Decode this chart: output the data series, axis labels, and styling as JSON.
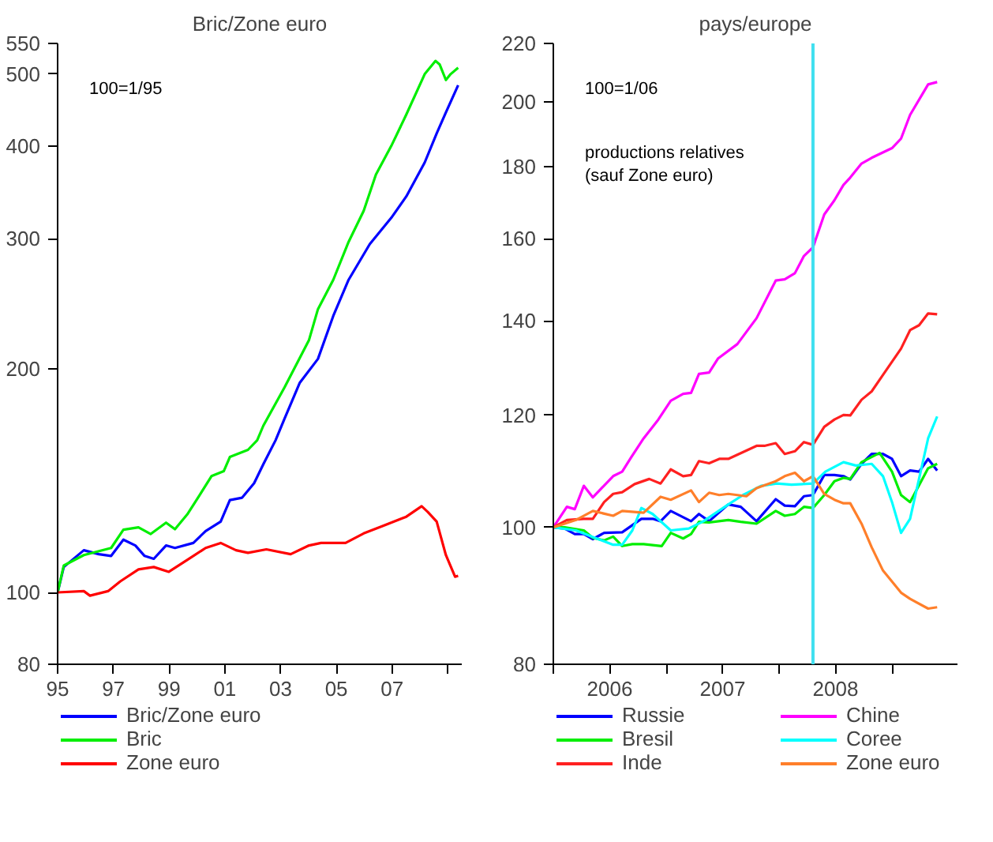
{
  "chart_data": [
    {
      "type": "line",
      "title": "Bric/Zone euro",
      "log": true,
      "grid": false,
      "legend": "bottom",
      "annotations": [
        "100=1/95"
      ],
      "ylim": [
        80,
        550
      ],
      "yticks": [
        80,
        100,
        200,
        300,
        400,
        500,
        550
      ],
      "xlim": [
        1995,
        2009.5
      ],
      "xticks": [
        {
          "value": 1995,
          "label": "95"
        },
        {
          "value": 1997,
          "label": "97"
        },
        {
          "value": 1999,
          "label": "99"
        },
        {
          "value": 2001,
          "label": "01"
        },
        {
          "value": 2003,
          "label": "03"
        },
        {
          "value": 2005,
          "label": "05"
        },
        {
          "value": 2007,
          "label": "07"
        },
        {
          "value": 2009,
          "label": null
        }
      ],
      "series": [
        {
          "name": "Bric/Zone euro",
          "color": "#0000ff",
          "x": [
            1995,
            1995.22,
            1995.94,
            1996.48,
            1996.92,
            1997.36,
            1997.79,
            1998.12,
            1998.45,
            1998.89,
            1999.21,
            1999.87,
            2000.31,
            2000.85,
            2001.18,
            2001.62,
            2002.05,
            2002.38,
            2002.82,
            2003.14,
            2003.69,
            2004.34,
            2004.89,
            2005.44,
            2006.2,
            2006.97,
            2007.51,
            2008.17,
            2008.6,
            2008.93,
            2009.37
          ],
          "values": [
            100,
            108.2,
            114,
            112.6,
            112,
            117.8,
            115.7,
            112,
            111,
            115.7,
            114.8,
            116.6,
            121,
            124.6,
            133.2,
            134.2,
            140.4,
            148.9,
            160.4,
            171.5,
            191.8,
            206.5,
            236,
            264,
            295,
            320,
            342,
            380,
            416,
            444,
            483
          ]
        },
        {
          "name": "Bric",
          "color": "#00ee00",
          "x": [
            1995,
            1995.22,
            1995.94,
            1996.92,
            1997.36,
            1997.9,
            1998.34,
            1998.89,
            1999.21,
            1999.65,
            2000.09,
            2000.52,
            2000.96,
            2001.18,
            2001.83,
            2002.16,
            2002.38,
            2003.14,
            2004.02,
            2004.34,
            2004.89,
            2005.44,
            2005.98,
            2006.42,
            2006.97,
            2007.51,
            2008.17,
            2008.56,
            2008.71,
            2008.93,
            2009.1,
            2009.37
          ],
          "values": [
            100,
            108.7,
            112.3,
            114.8,
            121.5,
            122.4,
            119.9,
            124.2,
            121.7,
            127.4,
            135.2,
            143.5,
            145.7,
            152.3,
            155.7,
            160.4,
            167.8,
            189,
            219,
            241,
            264,
            297,
            327,
            366,
            400,
            441,
            500,
            521,
            515,
            491,
            500,
            510
          ]
        },
        {
          "name": "Zone euro",
          "color": "#ff0000",
          "x": [
            1995,
            1995.94,
            1996.16,
            1996.81,
            1997.25,
            1997.9,
            1998.45,
            1998.99,
            1999.65,
            2000.31,
            2000.85,
            2001.4,
            2001.83,
            2002.49,
            2003.36,
            2004.02,
            2004.45,
            2005.33,
            2005.98,
            2006.64,
            2007.51,
            2008.06,
            2008.28,
            2008.6,
            2008.93,
            2009.26,
            2009.37
          ],
          "values": [
            100,
            100.4,
            99,
            100.4,
            103.5,
            107.4,
            108.2,
            106.6,
            110.6,
            114.8,
            116.6,
            114,
            113.1,
            114.3,
            112.6,
            115.7,
            116.6,
            116.6,
            120.1,
            122.8,
            126.5,
            130.7,
            128.4,
            124.6,
            112.3,
            105,
            105.3
          ]
        }
      ]
    },
    {
      "type": "line",
      "title": "pays/europe",
      "log": true,
      "grid": false,
      "legend": "bottom",
      "annotations": [
        "100=1/06",
        "productions relatives\n(sauf Zone euro)"
      ],
      "ylim": [
        80,
        220
      ],
      "yticks": [
        80,
        100,
        120,
        140,
        160,
        180,
        200,
        220
      ],
      "xlim": [
        2006,
        2009.58
      ],
      "xticks": [
        {
          "value": 2006,
          "label": null
        },
        {
          "value": 2007,
          "label": null
        },
        {
          "value": 2008,
          "label": null
        },
        {
          "value": 2009,
          "label": null
        },
        {
          "value": 2006.5,
          "label": "2006"
        },
        {
          "value": 2007.5,
          "label": "2007"
        },
        {
          "value": 2008.5,
          "label": "2008"
        }
      ],
      "ref_lines": [
        {
          "axis": "x",
          "value": 2008.3,
          "label": null,
          "color": "#40e0f0"
        }
      ],
      "series": [
        {
          "name": "Russie",
          "color": "#0000ff",
          "x": [
            2006,
            2006.1,
            2006.19,
            2006.27,
            2006.35,
            2006.45,
            2006.61,
            2006.78,
            2006.88,
            2006.95,
            2007.04,
            2007.22,
            2007.29,
            2007.38,
            2007.55,
            2007.66,
            2007.8,
            2007.97,
            2008.05,
            2008.14,
            2008.22,
            2008.3,
            2008.4,
            2008.49,
            2008.57,
            2008.63,
            2008.73,
            2008.82,
            2008.92,
            2009.0,
            2009.08,
            2009.16,
            2009.24,
            2009.32,
            2009.4
          ],
          "values": [
            100,
            99.8,
            98.9,
            98.9,
            98.1,
            99.1,
            99.2,
            101.4,
            101.4,
            101,
            102.7,
            101,
            102.2,
            101,
            103.8,
            103.4,
            101,
            104.7,
            103.6,
            103.5,
            105.2,
            105.4,
            108.9,
            108.9,
            108.7,
            108.1,
            110.9,
            112.7,
            112.7,
            111.8,
            108.7,
            109.7,
            109.5,
            111.8,
            109.7
          ]
        },
        {
          "name": "Chine",
          "color": "#ff00ff",
          "x": [
            2006,
            2006.12,
            2006.19,
            2006.27,
            2006.35,
            2006.53,
            2006.61,
            2006.69,
            2006.8,
            2006.93,
            2007.04,
            2007.15,
            2007.22,
            2007.29,
            2007.38,
            2007.46,
            2007.63,
            2007.8,
            2007.97,
            2008.05,
            2008.14,
            2008.22,
            2008.3,
            2008.4,
            2008.49,
            2008.57,
            2008.63,
            2008.73,
            2008.82,
            2009.0,
            2009.08,
            2009.16,
            2009.32,
            2009.4
          ],
          "values": [
            100,
            103.4,
            103,
            107,
            105,
            108.7,
            109.5,
            112.1,
            115.6,
            119.2,
            122.9,
            124.3,
            124.5,
            128.4,
            128.7,
            131.7,
            134.8,
            140.6,
            149.5,
            149.8,
            151.3,
            155.6,
            157.8,
            166.5,
            170.4,
            174.7,
            176.8,
            180.9,
            182.6,
            185.5,
            188.4,
            195.8,
            205.8,
            206.6
          ]
        },
        {
          "name": "Bresil",
          "color": "#00ee00",
          "x": [
            2006,
            2006.1,
            2006.27,
            2006.35,
            2006.45,
            2006.53,
            2006.61,
            2006.7,
            2006.8,
            2006.96,
            2007.04,
            2007.15,
            2007.22,
            2007.29,
            2007.38,
            2007.55,
            2007.66,
            2007.8,
            2007.97,
            2008.05,
            2008.14,
            2008.22,
            2008.3,
            2008.4,
            2008.49,
            2008.57,
            2008.63,
            2008.73,
            2008.89,
            2009.0,
            2009.08,
            2009.16,
            2009.32,
            2009.4
          ],
          "values": [
            100,
            100,
            99.5,
            98.3,
            97.9,
            98.5,
            97,
            97.3,
            97.3,
            97,
            99.1,
            98.2,
            98.9,
            100.9,
            100.8,
            101.2,
            100.9,
            100.6,
            102.7,
            101.9,
            102.2,
            103.4,
            103.2,
            105.4,
            107.8,
            108.4,
            108.2,
            111.2,
            112.9,
            109.5,
            105.4,
            104.2,
            110.1,
            110.9
          ]
        },
        {
          "name": "Coree",
          "color": "#00ffff",
          "x": [
            2006,
            2006.2,
            2006.37,
            2006.53,
            2006.61,
            2006.7,
            2006.78,
            2006.88,
            2007.04,
            2007.2,
            2007.33,
            2007.55,
            2007.68,
            2007.84,
            2007.98,
            2008.11,
            2008.3,
            2008.41,
            2008.57,
            2008.68,
            2008.82,
            2008.92,
            2009.0,
            2009.08,
            2009.16,
            2009.32,
            2009.4
          ],
          "values": [
            100,
            99.5,
            98.3,
            97.2,
            97.2,
            99.5,
            103.2,
            102.2,
            99.5,
            99.8,
            101,
            103.8,
            105.4,
            107,
            107.4,
            107.2,
            107.4,
            109.5,
            111.2,
            110.6,
            110.9,
            108.7,
            104.2,
            99.1,
            101.4,
            115.6,
            119.8
          ]
        },
        {
          "name": "Inde",
          "color": "#ff2020",
          "x": [
            2006,
            2006.12,
            2006.27,
            2006.35,
            2006.45,
            2006.53,
            2006.61,
            2006.72,
            2006.85,
            2006.95,
            2007.04,
            2007.15,
            2007.22,
            2007.29,
            2007.38,
            2007.47,
            2007.55,
            2007.8,
            2007.87,
            2007.97,
            2008.05,
            2008.14,
            2008.22,
            2008.3,
            2008.4,
            2008.49,
            2008.57,
            2008.63,
            2008.73,
            2008.82,
            2008.92,
            2009.08,
            2009.16,
            2009.24,
            2009.32,
            2009.4
          ],
          "values": [
            100,
            101.2,
            101.4,
            101.4,
            104.2,
            105.6,
            105.9,
            107.3,
            108.2,
            107.4,
            109.9,
            108.7,
            108.9,
            111.4,
            111,
            111.8,
            111.8,
            114.2,
            114.2,
            114.7,
            112.7,
            113.2,
            114.9,
            114.4,
            117.8,
            119.2,
            120.1,
            120,
            123.1,
            124.8,
            128.2,
            133.8,
            137.9,
            139,
            141.7,
            141.5
          ]
        },
        {
          "name": "Zone euro",
          "color": "#ff7f2a",
          "x": [
            2006,
            2006.1,
            2006.2,
            2006.35,
            2006.53,
            2006.61,
            2006.8,
            2006.95,
            2007.04,
            2007.22,
            2007.29,
            2007.38,
            2007.47,
            2007.55,
            2007.71,
            2007.8,
            2007.97,
            2008.05,
            2008.14,
            2008.22,
            2008.3,
            2008.4,
            2008.49,
            2008.57,
            2008.63,
            2008.73,
            2008.82,
            2008.92,
            2009.08,
            2009.16,
            2009.32,
            2009.4
          ],
          "values": [
            100,
            100.6,
            101.2,
            102.7,
            101.9,
            102.7,
            102.4,
            105.1,
            104.6,
            106.2,
            104.2,
            105.8,
            105.4,
            105.6,
            105.2,
            106.6,
            107.8,
            108.7,
            109.3,
            107.8,
            108.7,
            105.6,
            104.6,
            104,
            104,
            100.6,
            96.8,
            93.2,
            89.9,
            89,
            87.6,
            87.8
          ]
        }
      ]
    }
  ]
}
